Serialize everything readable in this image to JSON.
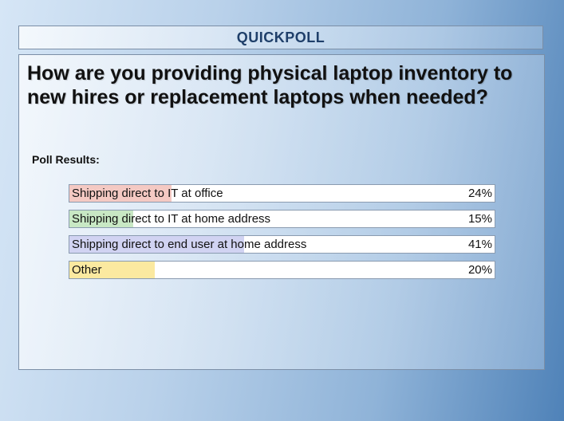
{
  "header": {
    "title": "QUICKPOLL"
  },
  "question": "How are you providing physical laptop inventory to new hires or replacement laptops when needed?",
  "results_label": "Poll Results:",
  "options": [
    {
      "label": "Shipping direct to IT at office",
      "percent_text": "24%",
      "percent": 24,
      "color": "#f4c9c3"
    },
    {
      "label": "Shipping direct to IT at home address",
      "percent_text": "15%",
      "percent": 15,
      "color": "#c8e8c4"
    },
    {
      "label": "Shipping direct to end user at home address",
      "percent_text": "41%",
      "percent": 41,
      "color": "#d1d3f2"
    },
    {
      "label": "Other",
      "percent_text": "20%",
      "percent": 20,
      "color": "#fbe9a0"
    }
  ]
}
